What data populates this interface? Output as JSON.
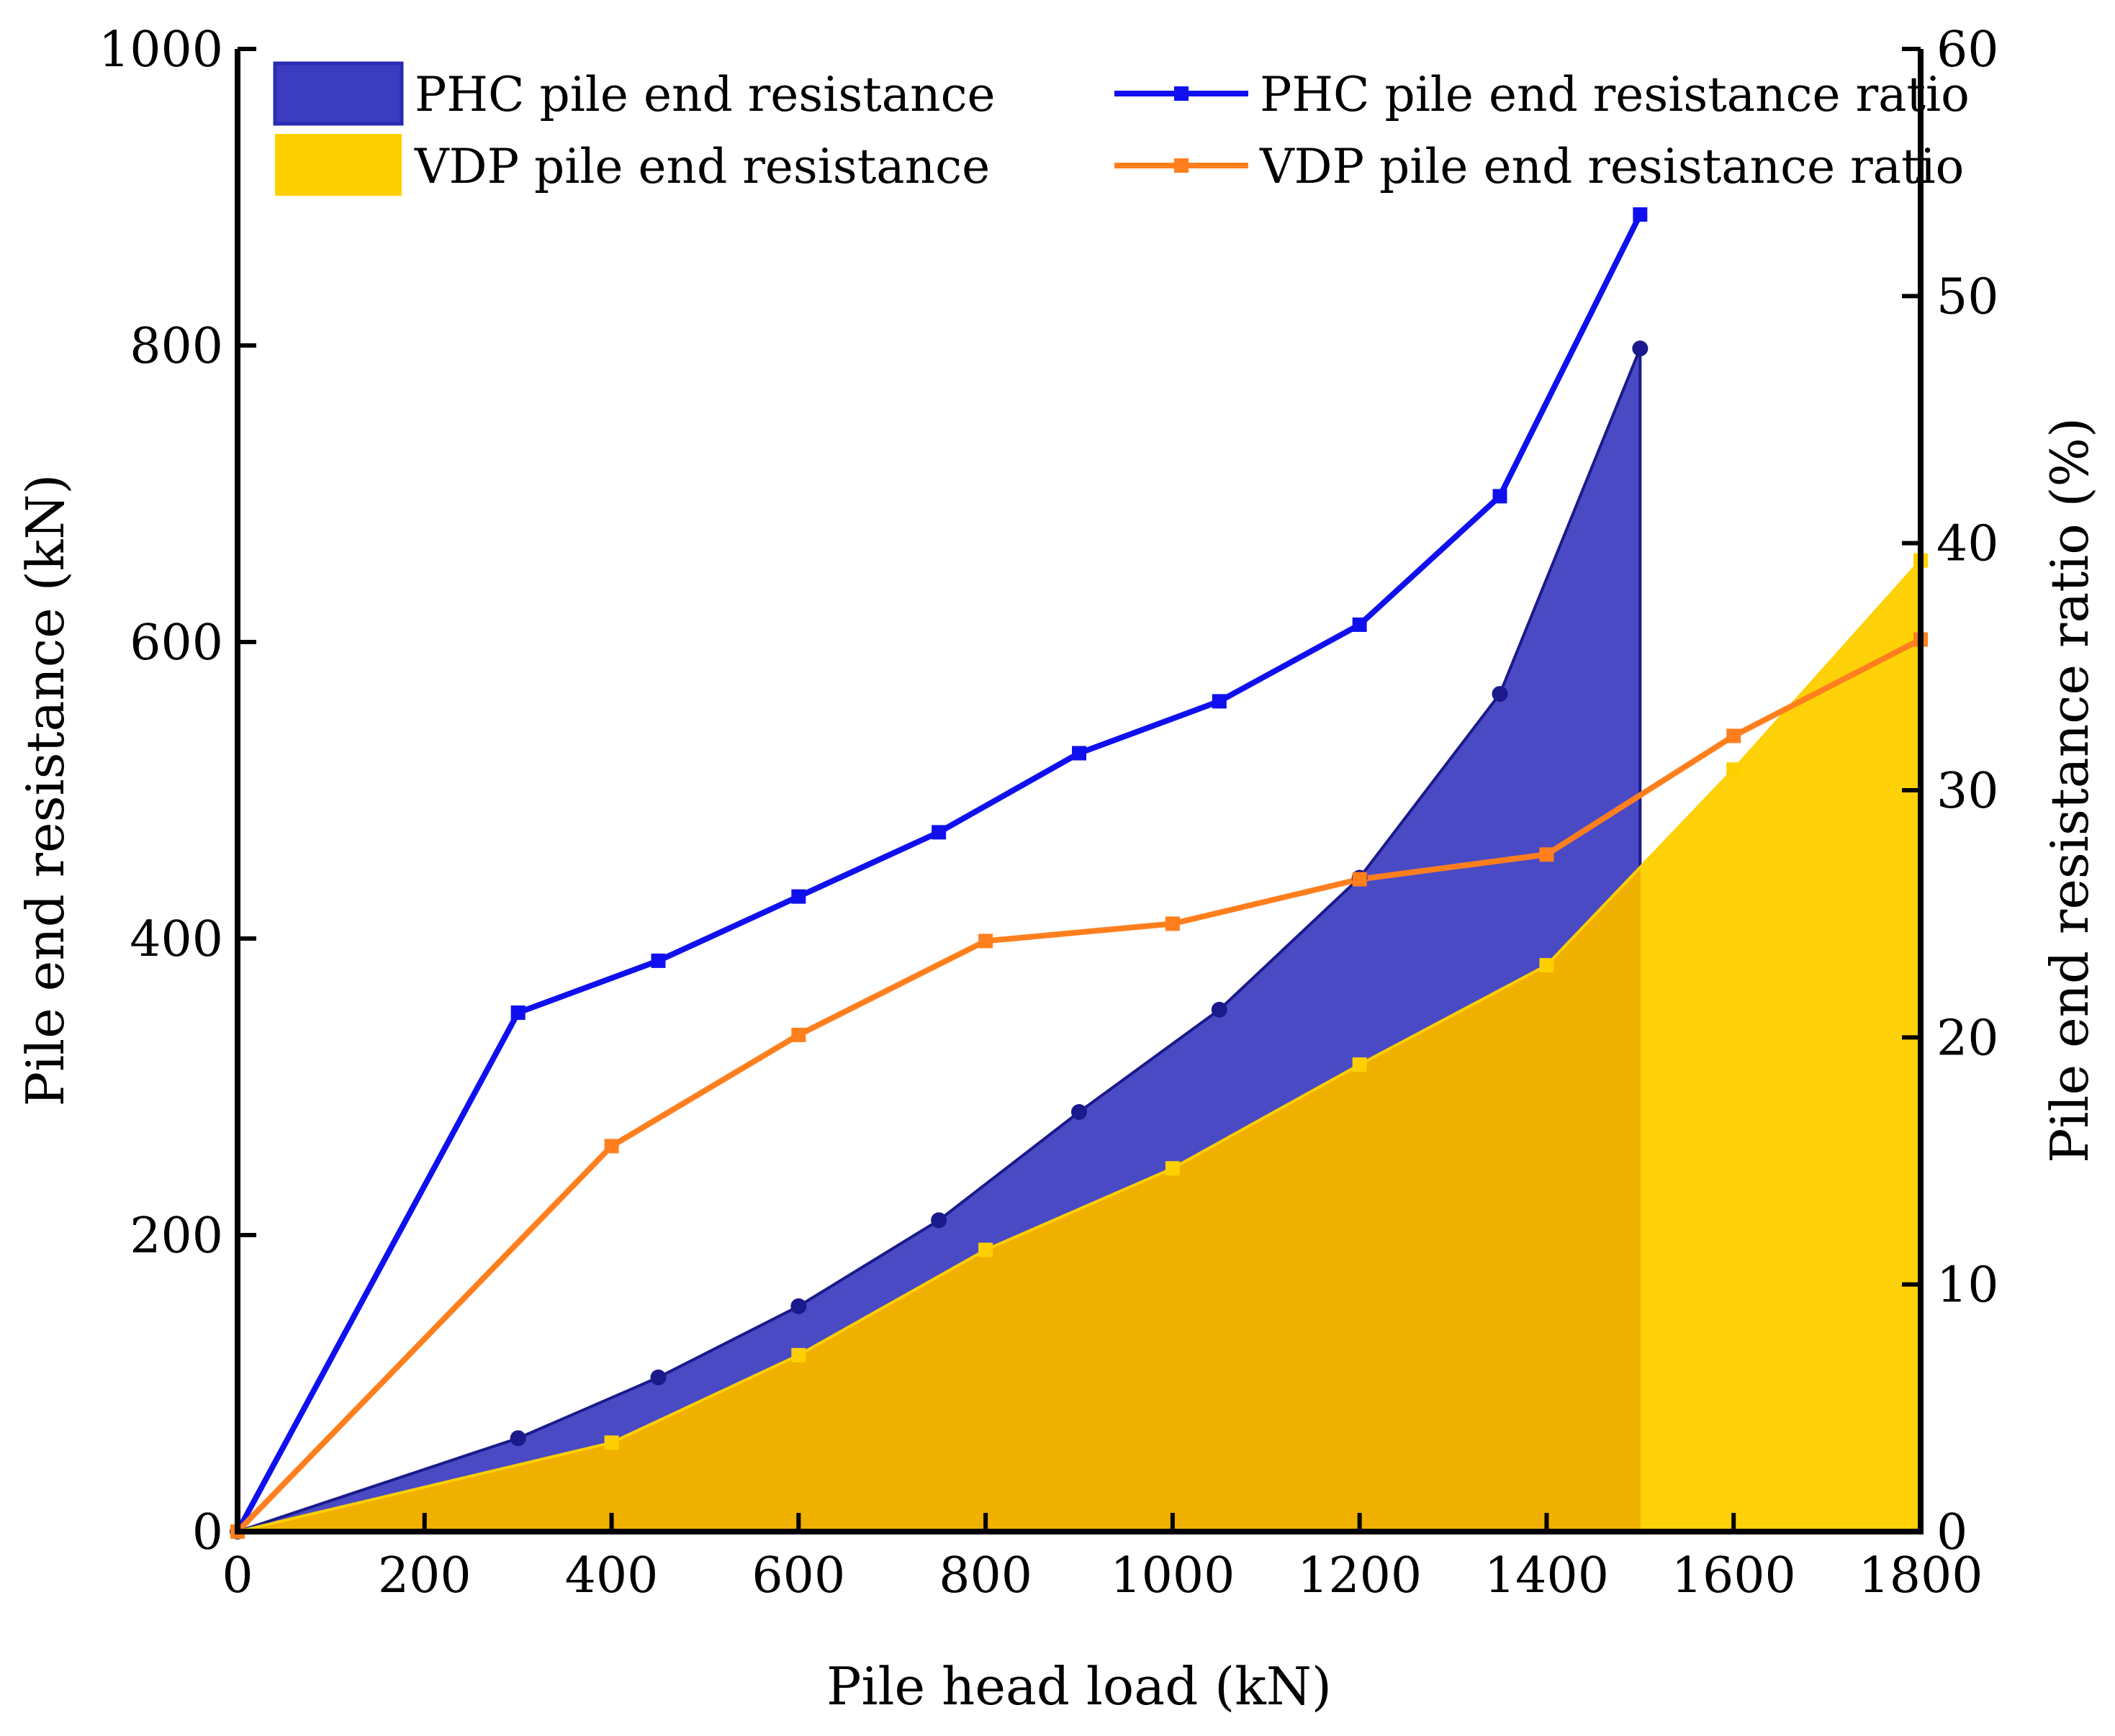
{
  "chart_data": {
    "type": "area",
    "x_axis": {
      "label": "Pile head load (kN)",
      "range": [
        0,
        1800
      ],
      "ticks": [
        "0",
        "200",
        "400",
        "600",
        "800",
        "1000",
        "1200",
        "1400",
        "1600",
        "1800"
      ]
    },
    "y_axis_left": {
      "label": "Pile end resistance  (kN)",
      "range": [
        0,
        1000
      ],
      "ticks": [
        "0",
        "200",
        "400",
        "600",
        "800",
        "1000"
      ]
    },
    "y_axis_right": {
      "label": "Pile end resistance ratio (%)",
      "range": [
        0,
        60
      ],
      "ticks": [
        "0",
        "10",
        "20",
        "30",
        "40",
        "50",
        "60"
      ]
    },
    "grid": false,
    "legend_position": "top",
    "series": [
      {
        "name": "PHC pile end resistance",
        "kind": "area",
        "axis": "left",
        "color": "#3c3cc0",
        "marker_color": "#1a1a8c",
        "x": [
          0,
          300,
          450,
          600,
          750,
          900,
          1050,
          1200,
          1350,
          1500
        ],
        "y": [
          0,
          63,
          104,
          152,
          210,
          283,
          352,
          441,
          565,
          798
        ]
      },
      {
        "name": "VDP pile end resistance",
        "kind": "area",
        "axis": "left",
        "color": "#ffd000",
        "marker_color": "#ffd000",
        "x": [
          0,
          400,
          600,
          800,
          1000,
          1200,
          1400,
          1600,
          1800
        ],
        "y": [
          0,
          60,
          119,
          190,
          245,
          315,
          382,
          514,
          655
        ]
      },
      {
        "name": "PHC pile end resistance ratio",
        "kind": "line",
        "axis": "right",
        "color": "#1010ee",
        "x": [
          0,
          300,
          450,
          600,
          750,
          900,
          1050,
          1200,
          1350,
          1500
        ],
        "y": [
          0,
          21.0,
          23.1,
          25.7,
          28.3,
          31.5,
          33.6,
          36.7,
          41.9,
          53.3
        ]
      },
      {
        "name": "VDP pile end resistance ratio",
        "kind": "line",
        "axis": "right",
        "color": "#ff7f1e",
        "x": [
          0,
          400,
          600,
          800,
          1000,
          1200,
          1400,
          1600,
          1800
        ],
        "y": [
          0,
          15.6,
          20.1,
          23.9,
          24.6,
          26.4,
          27.4,
          32.2,
          36.1
        ]
      }
    ]
  }
}
